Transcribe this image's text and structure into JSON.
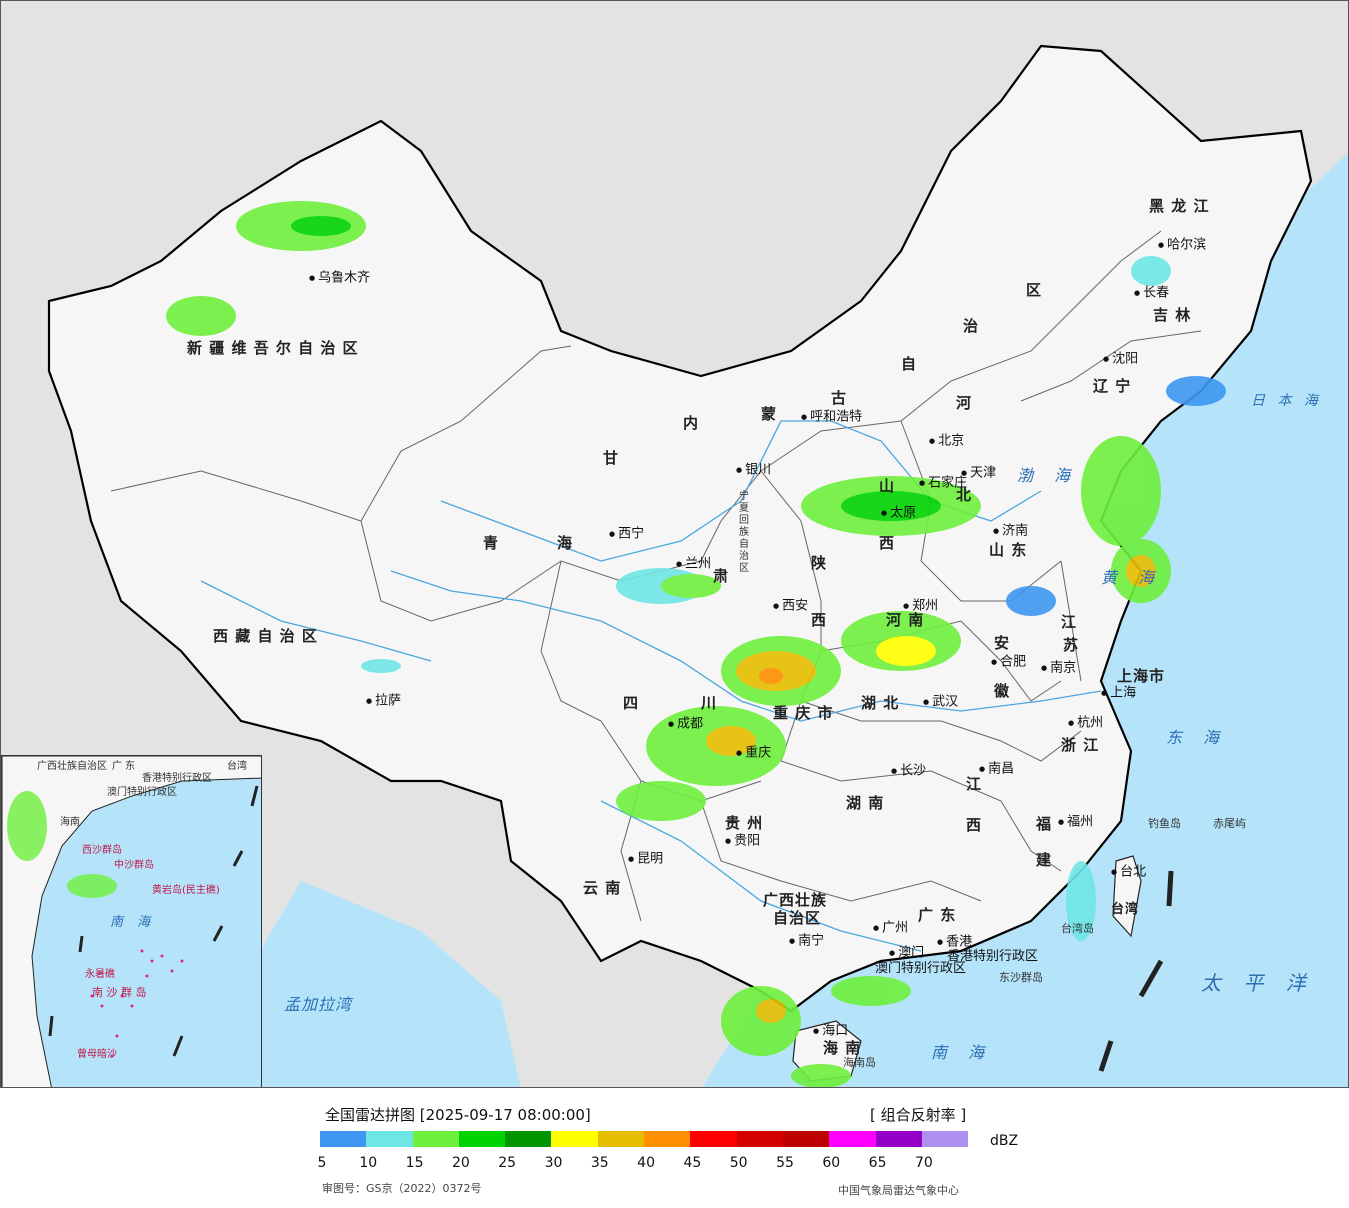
{
  "map": {
    "provinces": [
      {
        "id": "xinjiang",
        "text": "新 疆 维 吾 尔 自 治 区"
      },
      {
        "id": "xizang",
        "text": "西 藏 自 治 区"
      },
      {
        "id": "qinghai-1",
        "text": "青"
      },
      {
        "id": "qinghai-2",
        "text": "海"
      },
      {
        "id": "gansu-1",
        "text": "甘"
      },
      {
        "id": "gansu-2",
        "text": "肃"
      },
      {
        "id": "neimenggu-1",
        "text": "内"
      },
      {
        "id": "neimenggu-2",
        "text": "蒙"
      },
      {
        "id": "neimenggu-3",
        "text": "古"
      },
      {
        "id": "neimenggu-4",
        "text": "自"
      },
      {
        "id": "neimenggu-5",
        "text": "治"
      },
      {
        "id": "neimenggu-6",
        "text": "区"
      },
      {
        "id": "heilongjiang",
        "text": "黑 龙 江"
      },
      {
        "id": "jilin",
        "text": "吉 林"
      },
      {
        "id": "liaoning",
        "text": "辽 宁"
      },
      {
        "id": "hebei-1",
        "text": "河"
      },
      {
        "id": "hebei-2",
        "text": "北"
      },
      {
        "id": "shanxi-1",
        "text": "山"
      },
      {
        "id": "shanxi-2",
        "text": "西"
      },
      {
        "id": "shaanxi-1",
        "text": "陕"
      },
      {
        "id": "shaanxi-2",
        "text": "西"
      },
      {
        "id": "shandong",
        "text": "山 东"
      },
      {
        "id": "henan",
        "text": "河 南"
      },
      {
        "id": "jiangsu-1",
        "text": "江"
      },
      {
        "id": "jiangsu-2",
        "text": "苏"
      },
      {
        "id": "anhui-1",
        "text": "安"
      },
      {
        "id": "anhui-2",
        "text": "徽"
      },
      {
        "id": "hubei",
        "text": "湖 北"
      },
      {
        "id": "sichuan-1",
        "text": "四"
      },
      {
        "id": "sichuan-2",
        "text": "川"
      },
      {
        "id": "chongqing",
        "text": "重 庆 市"
      },
      {
        "id": "zhejiang",
        "text": "浙 江"
      },
      {
        "id": "shanghai",
        "text": "上海市"
      },
      {
        "id": "jiangxi-1",
        "text": "江"
      },
      {
        "id": "jiangxi-2",
        "text": "西"
      },
      {
        "id": "hunan",
        "text": "湖 南"
      },
      {
        "id": "guizhou",
        "text": "贵 州"
      },
      {
        "id": "fujian-1",
        "text": "福"
      },
      {
        "id": "fujian-2",
        "text": "建"
      },
      {
        "id": "yunnan",
        "text": "云 南"
      },
      {
        "id": "guangxi-1",
        "text": "广西壮族"
      },
      {
        "id": "guangxi-2",
        "text": "自治区"
      },
      {
        "id": "guangdong",
        "text": "广 东"
      },
      {
        "id": "hainan",
        "text": "海 南"
      },
      {
        "id": "taiwan",
        "text": "台湾"
      },
      {
        "id": "ningxia",
        "text": "宁夏回族自治区"
      },
      {
        "id": "hongkong",
        "text": "香港特别行政区"
      },
      {
        "id": "macao",
        "text": "澳门特别行政区"
      }
    ],
    "cities": [
      {
        "id": "urumqi",
        "text": "乌鲁木齐"
      },
      {
        "id": "lhasa",
        "text": "拉萨"
      },
      {
        "id": "xining",
        "text": "西宁"
      },
      {
        "id": "lanzhou",
        "text": "兰州"
      },
      {
        "id": "yinchuan",
        "text": "银川"
      },
      {
        "id": "hohhot",
        "text": "呼和浩特"
      },
      {
        "id": "beijing",
        "text": "北京"
      },
      {
        "id": "tianjin",
        "text": "天津"
      },
      {
        "id": "shijiazhuang",
        "text": "石家庄"
      },
      {
        "id": "taiyuan",
        "text": "太原"
      },
      {
        "id": "jinan",
        "text": "济南"
      },
      {
        "id": "xian",
        "text": "西安"
      },
      {
        "id": "zhengzhou",
        "text": "郑州"
      },
      {
        "id": "hefei",
        "text": "合肥"
      },
      {
        "id": "nanjing",
        "text": "南京"
      },
      {
        "id": "shanghai-city",
        "text": "上海"
      },
      {
        "id": "hangzhou",
        "text": "杭州"
      },
      {
        "id": "wuhan",
        "text": "武汉"
      },
      {
        "id": "chengdu",
        "text": "成都"
      },
      {
        "id": "chongqing-city",
        "text": "重庆"
      },
      {
        "id": "changsha",
        "text": "长沙"
      },
      {
        "id": "nanchang",
        "text": "南昌"
      },
      {
        "id": "fuzhou",
        "text": "福州"
      },
      {
        "id": "taibei",
        "text": "台北"
      },
      {
        "id": "guiyang",
        "text": "贵阳"
      },
      {
        "id": "kunming",
        "text": "昆明"
      },
      {
        "id": "nanning",
        "text": "南宁"
      },
      {
        "id": "guangzhou",
        "text": "广州"
      },
      {
        "id": "hongkong-city",
        "text": "香港"
      },
      {
        "id": "macao-city",
        "text": "澳门"
      },
      {
        "id": "haikou",
        "text": "海口"
      },
      {
        "id": "shenyang",
        "text": "沈阳"
      },
      {
        "id": "changchun",
        "text": "长春"
      },
      {
        "id": "harbin",
        "text": "哈尔滨"
      }
    ],
    "seas": [
      {
        "id": "bohai",
        "text": "渤 海"
      },
      {
        "id": "huanghai",
        "text": "黄 海"
      },
      {
        "id": "donghai",
        "text": "东 海"
      },
      {
        "id": "nanhai",
        "text": "南 海"
      },
      {
        "id": "taipingyang",
        "text": "太 平 洋"
      },
      {
        "id": "ribenhai",
        "text": "日 本 海"
      },
      {
        "id": "mengjialawan",
        "text": "孟加拉湾"
      }
    ],
    "islands": [
      {
        "id": "diaoyudao",
        "text": "钓鱼岛"
      },
      {
        "id": "chiweiyu",
        "text": "赤尾屿"
      },
      {
        "id": "taiwandao",
        "text": "台湾岛"
      },
      {
        "id": "dongshaqundao",
        "text": "东沙群岛"
      },
      {
        "id": "hainandao",
        "text": "海南岛"
      }
    ],
    "inset": {
      "labels": [
        {
          "id": "inset-guangxi",
          "text": "广西壮族自治区"
        },
        {
          "id": "inset-guangdong",
          "text": "广 东"
        },
        {
          "id": "inset-hk",
          "text": "香港特别行政区"
        },
        {
          "id": "inset-macao",
          "text": "澳门特别行政区"
        },
        {
          "id": "inset-taiwan",
          "text": "台湾"
        },
        {
          "id": "inset-hainan",
          "text": "海南"
        },
        {
          "id": "inset-xisha",
          "text": "西沙群岛"
        },
        {
          "id": "inset-zhongsha",
          "text": "中沙群岛"
        },
        {
          "id": "inset-huangyan",
          "text": "黄岩岛(民主礁)"
        },
        {
          "id": "inset-nansha",
          "text": "南 沙 群 岛"
        },
        {
          "id": "inset-nanhai",
          "text": "南 海"
        },
        {
          "id": "inset-zengmu",
          "text": "曾母暗沙"
        },
        {
          "id": "inset-yongshu",
          "text": "永暑礁"
        }
      ]
    }
  },
  "legend": {
    "title": "全国雷达拼图 [2025-09-17 08:00:00]",
    "product": "[ 组合反射率 ]",
    "unit": "dBZ",
    "colors": [
      "#3d97f0",
      "#6ee6e6",
      "#6ef03c",
      "#00d400",
      "#009400",
      "#ffff00",
      "#e6be00",
      "#ff9000",
      "#ff0000",
      "#d40000",
      "#bc0000",
      "#ff00ff",
      "#9400c8",
      "#ad90f0"
    ],
    "ticks": [
      "5",
      "10",
      "15",
      "20",
      "25",
      "30",
      "35",
      "40",
      "45",
      "50",
      "55",
      "60",
      "65",
      "70"
    ],
    "approval": "审图号：GS京（2022）0372号",
    "organization": "中国气象局雷达气象中心"
  }
}
